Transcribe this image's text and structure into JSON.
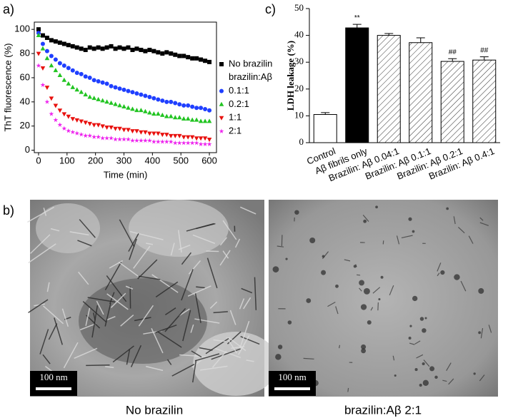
{
  "panel_labels": [
    "a)",
    "b)",
    "c)"
  ],
  "chart_data": [
    {
      "type": "scatter",
      "xlabel": "Time (min)",
      "ylabel": "ThT fluorescence (%)",
      "x": [
        0,
        15,
        30,
        45,
        60,
        75,
        90,
        105,
        120,
        135,
        150,
        165,
        180,
        195,
        210,
        225,
        240,
        255,
        270,
        285,
        300,
        315,
        330,
        345,
        360,
        375,
        390,
        405,
        420,
        435,
        450,
        465,
        480,
        495,
        510,
        525,
        540,
        555,
        570,
        585,
        600
      ],
      "xlim": [
        -15,
        625
      ],
      "xticks": [
        0,
        100,
        200,
        300,
        400,
        500,
        600
      ],
      "ylim": [
        -2,
        106
      ],
      "yticks": [
        0,
        20,
        40,
        60,
        80,
        100
      ],
      "legend_title": "brazilin:Aβ",
      "series": [
        {
          "name": "No brazilin",
          "color": "#000000",
          "marker": "square",
          "values": [
            100,
            95,
            93,
            91,
            90,
            89,
            88,
            87,
            86,
            85,
            84,
            83,
            85,
            84,
            85,
            84,
            85,
            86,
            84,
            85,
            84,
            85,
            83,
            84,
            83,
            82,
            83,
            82,
            81,
            80,
            81,
            80,
            79,
            78,
            78,
            77,
            76,
            76,
            75,
            74,
            73
          ]
        },
        {
          "name": "0.1:1",
          "color": "#1f3fff",
          "marker": "circle",
          "values": [
            97,
            88,
            82,
            78,
            75,
            72,
            70,
            68,
            66,
            64,
            63,
            61,
            60,
            58,
            57,
            56,
            55,
            53,
            52,
            51,
            50,
            49,
            48,
            47,
            46,
            45,
            44,
            43,
            42,
            41,
            40,
            40,
            39,
            38,
            37,
            37,
            36,
            35,
            35,
            34,
            33
          ]
        },
        {
          "name": "0.2:1",
          "color": "#22c422",
          "marker": "triangle",
          "values": [
            95,
            84,
            76,
            70,
            66,
            62,
            58,
            55,
            52,
            50,
            48,
            46,
            44,
            43,
            42,
            41,
            40,
            39,
            38,
            37,
            36,
            35,
            34,
            33,
            33,
            32,
            31,
            30,
            30,
            29,
            28,
            28,
            27,
            27,
            26,
            26,
            25,
            25,
            24,
            24,
            24
          ]
        },
        {
          "name": "1:1",
          "color": "#e8120f",
          "marker": "triangle-down",
          "values": [
            80,
            68,
            52,
            43,
            37,
            33,
            30,
            28,
            26,
            25,
            24,
            23,
            22,
            21,
            21,
            20,
            19,
            19,
            18,
            18,
            17,
            17,
            16,
            16,
            15,
            15,
            14,
            14,
            14,
            13,
            13,
            12,
            12,
            12,
            11,
            11,
            11,
            10,
            10,
            10,
            9
          ]
        },
        {
          "name": "2:1",
          "color": "#ee22ee",
          "marker": "star",
          "values": [
            70,
            54,
            40,
            30,
            25,
            21,
            18,
            16,
            15,
            14,
            13,
            12,
            12,
            11,
            11,
            10,
            10,
            10,
            9,
            9,
            9,
            9,
            8,
            8,
            8,
            8,
            8,
            7,
            7,
            7,
            7,
            7,
            6,
            6,
            6,
            6,
            6,
            6,
            5,
            5,
            5
          ]
        }
      ]
    },
    {
      "type": "bar",
      "ylabel": "LDH leakage  (%)",
      "categories": [
        "Control",
        "Aβ fibrils only",
        "Brazilin: Aβ 0.04:1",
        "Brazilin: Aβ 0.1:1",
        "Brazilin: Aβ 0.2:1",
        "Brazilin: Aβ 0.4:1"
      ],
      "values": [
        10.5,
        42.8,
        40,
        37.3,
        30.3,
        30.8
      ],
      "errors": [
        0.7,
        1.3,
        0.7,
        1.8,
        1,
        1.2
      ],
      "annotations": [
        null,
        "**",
        null,
        null,
        "##",
        "##"
      ],
      "fills": [
        "white",
        "black",
        "hatch",
        "hatch",
        "hatch",
        "hatch"
      ],
      "ylim": [
        0,
        50
      ],
      "yticks": [
        0,
        10,
        20,
        30,
        40,
        50
      ]
    }
  ],
  "images": [
    {
      "caption": "No brazilin",
      "scale_bar": "100 nm"
    },
    {
      "caption": "brazilin:Aβ 2:1",
      "scale_bar": "100 nm"
    }
  ]
}
